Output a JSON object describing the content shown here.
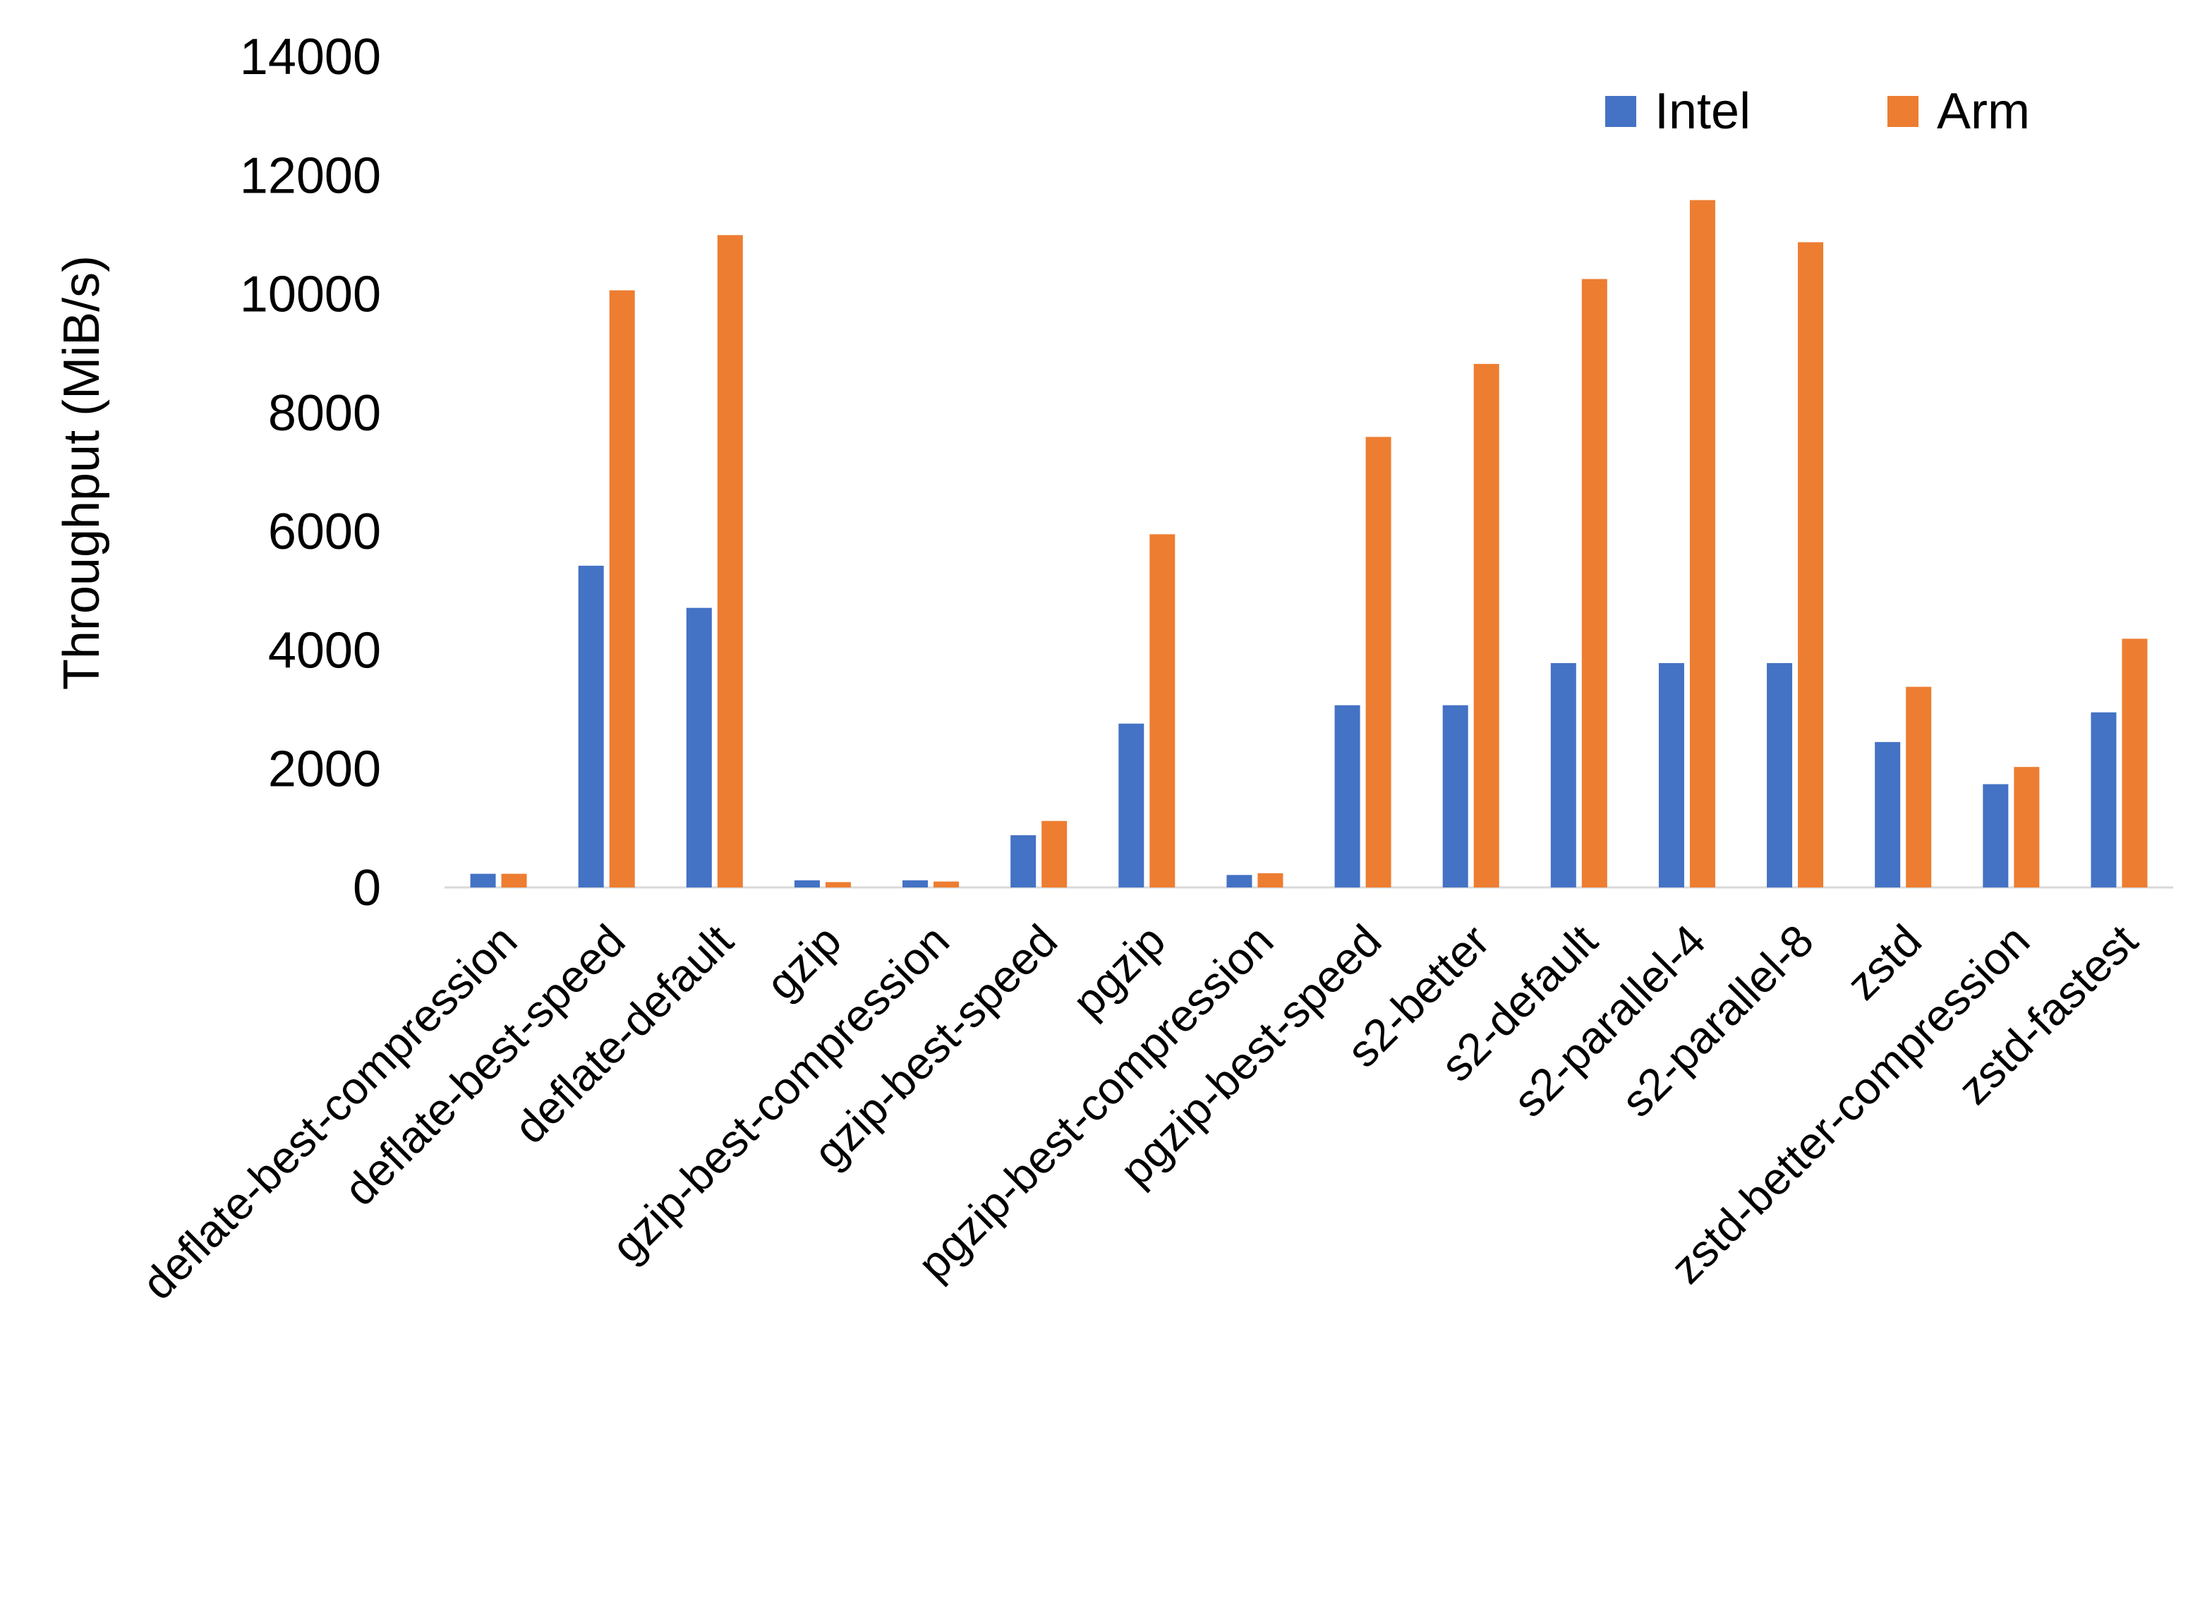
{
  "chart_data": {
    "type": "bar",
    "title": "",
    "xlabel": "",
    "ylabel": "Throughput (MiB/s)",
    "ylim": [
      0,
      14000
    ],
    "yticks": [
      "0",
      "2000",
      "4000",
      "6000",
      "8000",
      "10000",
      "12000",
      "14000"
    ],
    "grid": false,
    "legend_position": "top-right",
    "categories": [
      "deflate-best-compression",
      "deflate-best-speed",
      "deflate-default",
      "gzip",
      "gzip-best-compression",
      "gzip-best-speed",
      "pgzip",
      "pgzip-best-compression",
      "pgzip-best-speed",
      "s2-better",
      "s2-default",
      "s2-parallel-4",
      "s2-parallel-8",
      "zstd",
      "zstd-better-compression",
      "zstd-fastest"
    ],
    "series": [
      {
        "name": "Intel",
        "color": "#4472C4",
        "values": [
          230,
          5420,
          4710,
          120,
          120,
          880,
          2760,
          210,
          3070,
          3070,
          3780,
          3780,
          3780,
          2450,
          1740,
          2950
        ]
      },
      {
        "name": "Arm",
        "color": "#ED7D31",
        "values": [
          230,
          10060,
          10990,
          90,
          100,
          1120,
          5950,
          240,
          7590,
          8820,
          10250,
          11580,
          10870,
          3380,
          2030,
          4190
        ]
      }
    ]
  }
}
